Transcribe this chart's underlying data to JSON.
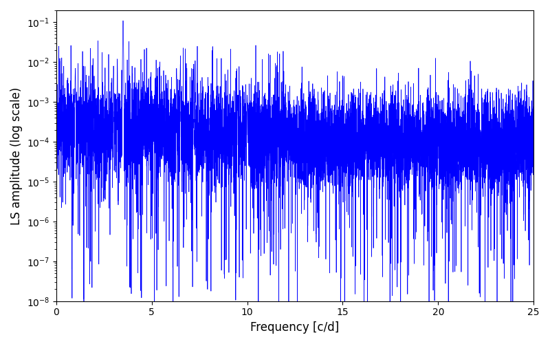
{
  "title": "",
  "xlabel": "Frequency [c/d]",
  "ylabel": "LS amplitude (log scale)",
  "xlim": [
    0,
    25
  ],
  "ylim": [
    1e-09,
    1.0
  ],
  "ylim_display": [
    1e-09,
    0.2
  ],
  "line_color": "blue",
  "background_color": "#ffffff",
  "figsize": [
    8.0,
    5.0
  ],
  "dpi": 100,
  "freq_min": 0.0,
  "freq_max": 25.0,
  "n_points": 8000,
  "seed": 17
}
